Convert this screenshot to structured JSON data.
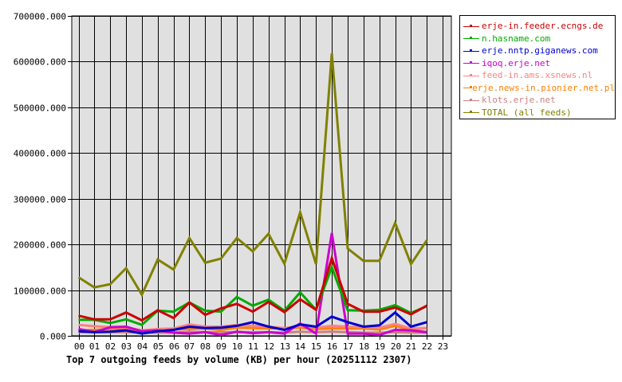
{
  "chart_data": {
    "type": "line",
    "title": "Top 7 outgoing feeds by volume (KB) per hour (20251112 2307)",
    "xlabel": "",
    "ylabel": "",
    "ylim": [
      0,
      700000
    ],
    "xlim": [
      0,
      23
    ],
    "grid": true,
    "legend_position": "right-top",
    "categories": [
      "00",
      "01",
      "02",
      "03",
      "04",
      "05",
      "06",
      "07",
      "08",
      "09",
      "10",
      "11",
      "12",
      "13",
      "14",
      "15",
      "16",
      "17",
      "18",
      "19",
      "20",
      "21",
      "22",
      "23"
    ],
    "y_ticks": [
      "0.000",
      "100000.000",
      "200000.000",
      "300000.000",
      "400000.000",
      "500000.000",
      "600000.000",
      "700000.000"
    ],
    "series": [
      {
        "name": "erje-in.feeder.ecngs.de",
        "color": "#cc0000",
        "values": [
          44000,
          36000,
          36000,
          51000,
          34000,
          56000,
          39000,
          73000,
          46000,
          60000,
          70000,
          53000,
          74000,
          52000,
          80000,
          57000,
          170000,
          70000,
          53000,
          53000,
          62000,
          47000,
          66000
        ]
      },
      {
        "name": "n.hasname.com",
        "color": "#00aa00",
        "values": [
          35000,
          35000,
          28000,
          36000,
          24000,
          55000,
          53000,
          73000,
          55000,
          53000,
          85000,
          66000,
          79000,
          55000,
          95000,
          57000,
          150000,
          56000,
          55000,
          57000,
          67000,
          50000,
          65000
        ]
      },
      {
        "name": "erje.nntp.giganews.com",
        "color": "#0000cc",
        "values": [
          10000,
          8000,
          9000,
          12000,
          5000,
          10000,
          13000,
          20000,
          17000,
          18000,
          22000,
          30000,
          20000,
          13000,
          25000,
          20000,
          42000,
          30000,
          20000,
          23000,
          51000,
          20000,
          30000
        ]
      },
      {
        "name": "iqoq.erje.net",
        "color": "#cc00cc",
        "values": [
          15000,
          8000,
          19000,
          20000,
          10000,
          12000,
          7000,
          5000,
          8000,
          2000,
          9000,
          6000,
          8000,
          5000,
          27000,
          5000,
          225000,
          5000,
          5000,
          2000,
          13000,
          12000,
          8000
        ]
      },
      {
        "name": "feed-in.ams.xsnews.nl",
        "color": "#ff8080",
        "values": [
          24000,
          21000,
          19000,
          18000,
          12000,
          15000,
          16000,
          25000,
          20000,
          20000,
          24000,
          22000,
          20000,
          17000,
          21000,
          18000,
          22000,
          20000,
          19000,
          18000,
          26000,
          16000,
          17000
        ]
      },
      {
        "name": "erje.news-in.pionier.net.pl",
        "color": "#ff8000",
        "values": [
          12000,
          13000,
          15000,
          16000,
          11000,
          13000,
          14000,
          15000,
          16000,
          13000,
          18000,
          17000,
          16000,
          17000,
          18000,
          15000,
          16000,
          16000,
          16000,
          14000,
          22000,
          13000,
          17000
        ]
      },
      {
        "name": "klots.erje.net",
        "color": "#cc8080",
        "values": [
          8000,
          8000,
          8000,
          8000,
          7000,
          7000,
          7000,
          9000,
          8000,
          8000,
          8000,
          8000,
          8000,
          7000,
          9000,
          8000,
          9000,
          8000,
          7000,
          7000,
          8000,
          7000,
          7000
        ]
      },
      {
        "name": "TOTAL (all feeds)",
        "color": "#808000",
        "values": [
          128000,
          106000,
          113000,
          148000,
          90000,
          167000,
          145000,
          214000,
          160000,
          169000,
          214000,
          185000,
          223000,
          158000,
          270000,
          157000,
          618000,
          191000,
          164000,
          164000,
          247000,
          157000,
          209000
        ]
      }
    ]
  },
  "colors": {
    "plot_background": "#e0e0e0",
    "grid": "#000000",
    "page_background": "#ffffff"
  }
}
